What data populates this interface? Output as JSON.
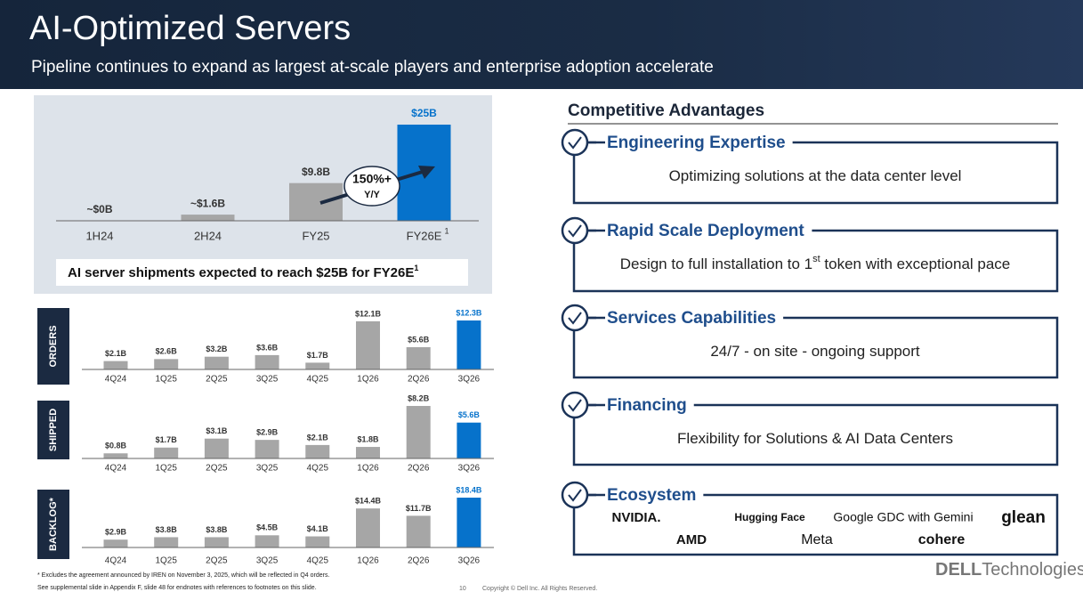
{
  "header": {
    "title": "AI-Optimized Servers",
    "subtitle": "Pipeline continues to expand as largest at-scale players and enterprise adoption accelerate"
  },
  "chart_data": [
    {
      "type": "bar",
      "categories": [
        "1H24",
        "2H24",
        "FY25",
        "FY26E"
      ],
      "category_superscripts": [
        null,
        null,
        null,
        "1"
      ],
      "values": [
        0,
        1.6,
        9.8,
        25
      ],
      "value_labels": [
        "~$0B",
        "~$1.6B",
        "$9.8B",
        "$25B"
      ],
      "colors": [
        "#a6a6a6",
        "#a6a6a6",
        "#a6a6a6",
        "#0672cb"
      ],
      "callout": [
        "150%+",
        "Y/Y"
      ],
      "caption": "AI server shipments expected to reach $25B for FY26E",
      "caption_superscript": "1"
    },
    {
      "type": "bar",
      "title": "ORDERS",
      "categories": [
        "4Q24",
        "1Q25",
        "2Q25",
        "3Q25",
        "4Q25",
        "1Q26",
        "2Q26",
        "3Q26"
      ],
      "values": [
        2.1,
        2.6,
        3.2,
        3.6,
        1.7,
        12.1,
        5.6,
        12.3
      ],
      "value_labels": [
        "$2.1B",
        "$2.6B",
        "$3.2B",
        "$3.6B",
        "$1.7B",
        "$12.1B",
        "$5.6B",
        "$12.3B"
      ],
      "colors": [
        "#a6a6a6",
        "#a6a6a6",
        "#a6a6a6",
        "#a6a6a6",
        "#a6a6a6",
        "#a6a6a6",
        "#a6a6a6",
        "#0672cb"
      ]
    },
    {
      "type": "bar",
      "title": "SHIPPED",
      "categories": [
        "4Q24",
        "1Q25",
        "2Q25",
        "3Q25",
        "4Q25",
        "1Q26",
        "2Q26",
        "3Q26"
      ],
      "values": [
        0.8,
        1.7,
        3.1,
        2.9,
        2.1,
        1.8,
        8.2,
        5.6
      ],
      "value_labels": [
        "$0.8B",
        "$1.7B",
        "$3.1B",
        "$2.9B",
        "$2.1B",
        "$1.8B",
        "$8.2B",
        "$5.6B"
      ],
      "colors": [
        "#a6a6a6",
        "#a6a6a6",
        "#a6a6a6",
        "#a6a6a6",
        "#a6a6a6",
        "#a6a6a6",
        "#a6a6a6",
        "#0672cb"
      ]
    },
    {
      "type": "bar",
      "title": "BACKLOG*",
      "categories": [
        "4Q24",
        "1Q25",
        "2Q25",
        "3Q25",
        "4Q25",
        "1Q26",
        "2Q26",
        "3Q26"
      ],
      "values": [
        2.9,
        3.8,
        3.8,
        4.5,
        4.1,
        14.4,
        11.7,
        18.4
      ],
      "value_labels": [
        "$2.9B",
        "$3.8B",
        "$3.8B",
        "$4.5B",
        "$4.1B",
        "$14.4B",
        "$11.7B",
        "$18.4B"
      ],
      "colors": [
        "#a6a6a6",
        "#a6a6a6",
        "#a6a6a6",
        "#a6a6a6",
        "#a6a6a6",
        "#a6a6a6",
        "#a6a6a6",
        "#0672cb"
      ]
    }
  ],
  "advantages": {
    "title": "Competitive Advantages",
    "items": [
      {
        "heading": "Engineering Expertise",
        "description": [
          "Optimizing solutions at the data center level"
        ]
      },
      {
        "heading": "Rapid Scale Deployment",
        "description": [
          "Design to full installation to 1",
          "st",
          " token with exceptional pace"
        ]
      },
      {
        "heading": "Services Capabilities",
        "description": [
          "24/7 - on site - ongoing support"
        ]
      },
      {
        "heading": "Financing",
        "description": [
          "Flexibility for Solutions & AI Data Centers"
        ]
      },
      {
        "heading": "Ecosystem",
        "logos": [
          "NVIDIA.",
          "Hugging Face",
          "Google GDC with Gemini",
          "glean",
          "AMD",
          "Meta",
          "cohere"
        ]
      }
    ]
  },
  "footer": {
    "notes": [
      "* Excludes the agreement announced by IREN on November 3, 2025, which will be reflected in Q4 orders.",
      "See supplemental slide in Appendix F, slide 48 for endnotes with references to footnotes on this slide."
    ],
    "page_number": "10",
    "copyright": "Copyright © Dell Inc. All Rights Reserved.",
    "logo": [
      "DELL",
      "Technologies"
    ]
  }
}
